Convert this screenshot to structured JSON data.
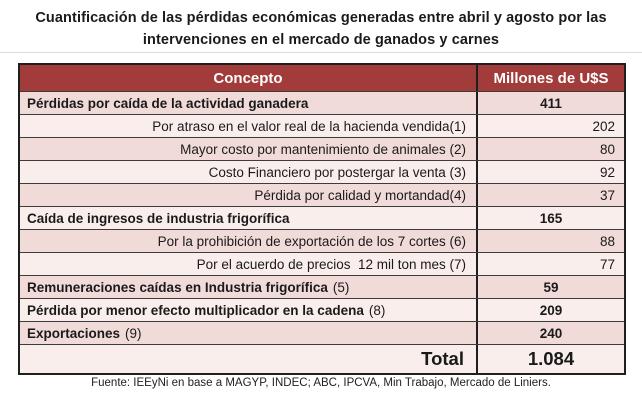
{
  "title": "Cuantificación de las pérdidas económicas generadas entre abril y agosto por las intervenciones en el mercado de ganados y carnes",
  "title_lines": [
    "Cuantificación de las pérdidas económicas generadas entre abril y agosto por las",
    "intervenciones en el mercado de ganados y carnes"
  ],
  "chart_data": {
    "type": "table",
    "title": "Cuantificación de las pérdidas económicas generadas entre abril y agosto por las intervenciones en el mercado de ganados y carnes",
    "columns": [
      "Concepto",
      "Millones de U$S"
    ],
    "unit": "Millones de U$S",
    "rows": [
      {
        "concept": "Pérdidas por caída de la actividad ganadera",
        "value": "411",
        "value_num": 411,
        "row_type": "category"
      },
      {
        "concept": "Por atraso en el valor real de la hacienda vendida(1)",
        "value": "202",
        "value_num": 202,
        "row_type": "sub"
      },
      {
        "concept": "Mayor costo por mantenimiento de animales (2)",
        "value": "80",
        "value_num": 80,
        "row_type": "sub"
      },
      {
        "concept": "Costo Financiero por postergar la venta (3)",
        "value": "92",
        "value_num": 92,
        "row_type": "sub"
      },
      {
        "concept": "Pérdida por calidad y mortandad(4)",
        "value": "37",
        "value_num": 37,
        "row_type": "sub"
      },
      {
        "concept": "Caída de ingresos de industria frigorífica",
        "value": "165",
        "value_num": 165,
        "row_type": "category"
      },
      {
        "concept": "Por la prohibición de exportación de los 7 cortes (6)",
        "value": "88",
        "value_num": 88,
        "row_type": "sub"
      },
      {
        "concept": "Por el acuerdo de precios  12 mil ton mes (7)",
        "value": "77",
        "value_num": 77,
        "row_type": "sub"
      },
      {
        "concept": "Remuneraciones caídas en Industria frigorífica",
        "ref": "(5)",
        "value": "59",
        "value_num": 59,
        "row_type": "category"
      },
      {
        "concept": "Pérdida por menor efecto multiplicador en la cadena",
        "ref": "(8)",
        "value": "209",
        "value_num": 209,
        "row_type": "category"
      },
      {
        "concept": "Exportaciones",
        "ref": "(9)",
        "value": "240",
        "value_num": 240,
        "row_type": "category"
      },
      {
        "concept": "Total",
        "value": "1.084",
        "value_num": 1084,
        "row_type": "total"
      }
    ],
    "source": "Fuente: IEEyNi en base a MAGYP, INDEC; ABC, IPCVA, Min Trabajo, Mercado de Liniers."
  },
  "colors": {
    "header_bg": "#A23C3A",
    "header_text": "#FFFFFF",
    "row_band_dark": "#F1DBD8",
    "row_band_light": "#F9EEEC",
    "border_outer": "#1F1F1F",
    "border_inner": "#3C3C3C",
    "title_divider": "#DCDCDC",
    "text": "#1A1A1A"
  }
}
